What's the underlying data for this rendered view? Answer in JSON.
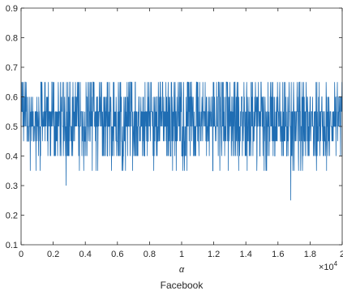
{
  "chart_data": {
    "type": "line",
    "title": "",
    "xlabel": "α",
    "caption": "Facebook",
    "ylabel": "",
    "xlim": [
      0,
      20000
    ],
    "ylim": [
      0.1,
      0.9
    ],
    "x_ticks": [
      0,
      2000,
      4000,
      6000,
      8000,
      10000,
      12000,
      14000,
      16000,
      18000,
      20000
    ],
    "x_tick_labels": [
      "0",
      "0.2",
      "0.4",
      "0.6",
      "0.8",
      "1",
      "1.2",
      "1.4",
      "1.6",
      "1.8",
      "2"
    ],
    "x_exponent_label": {
      "base": "×10",
      "exp": "4"
    },
    "y_ticks": [
      0.1,
      0.2,
      0.3,
      0.4,
      0.5,
      0.6,
      0.7,
      0.8,
      0.9
    ],
    "y_tick_labels": [
      "0.1",
      "0.2",
      "0.3",
      "0.4",
      "0.5",
      "0.6",
      "0.7",
      "0.8",
      "0.9"
    ],
    "grid": false,
    "legend": "none",
    "color": "#1f6db3",
    "series": [
      {
        "description": "dense oscillation, mostly between 0.45 and 0.60, frequent spikes to 0.40 and 0.65, rare dips to 0.35",
        "n_points": 20000,
        "typical_range": [
          0.45,
          0.6
        ],
        "spike_values": [
          0.35,
          0.4,
          0.65
        ],
        "notable_points": [
          {
            "x": 2800,
            "y": 0.3
          },
          {
            "x": 16800,
            "y": 0.25
          }
        ]
      }
    ]
  }
}
